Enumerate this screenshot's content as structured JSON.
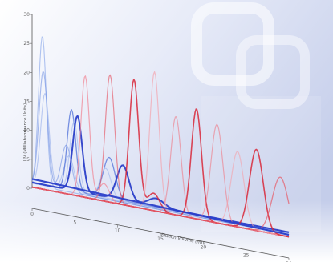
{
  "chart_data": {
    "type": "line",
    "title": "",
    "xlabel": "Elution Volume (mL)",
    "ylabel": "UV (Milliabsorbance Units)",
    "xlim": [
      0,
      30
    ],
    "ylim": [
      0,
      30
    ],
    "x_ticks": [
      "0",
      "5",
      "10",
      "15",
      "20",
      "25",
      "30"
    ],
    "y_ticks": [
      "0",
      "5",
      "10",
      "15",
      "20",
      "25",
      "30"
    ],
    "grid": false,
    "legend": "none",
    "palette": {
      "red": "#d8283a",
      "blue": "#2b3fc9",
      "background_tint": "#c9d2ee"
    },
    "series": [
      {
        "color": "#7f9fe8",
        "opacity": 0.6,
        "width": 1.1,
        "peaks": [
          [
            1.2,
            26,
            0.45
          ]
        ],
        "baseline": 0.6
      },
      {
        "color": "#6f90e2",
        "opacity": 0.6,
        "width": 1.1,
        "peaks": [
          [
            1.3,
            20,
            0.5
          ],
          [
            4.0,
            8,
            0.6
          ]
        ],
        "baseline": 0.6
      },
      {
        "color": "#8aa6ea",
        "opacity": 0.55,
        "width": 1.1,
        "peaks": [
          [
            1.5,
            16,
            0.5
          ],
          [
            4.3,
            6,
            0.6
          ]
        ],
        "baseline": 0.8
      },
      {
        "color": "#4d6fd8",
        "opacity": 0.75,
        "width": 1.3,
        "peaks": [
          [
            4.6,
            14,
            0.5
          ],
          [
            9.0,
            7,
            0.7
          ]
        ],
        "baseline": 0.9
      },
      {
        "color": "#9db4ee",
        "opacity": 0.6,
        "width": 1.1,
        "peaks": [
          [
            4.9,
            12,
            0.5
          ],
          [
            8.6,
            5,
            0.6
          ]
        ],
        "baseline": 0.9
      },
      {
        "color": "#2b3fc9",
        "opacity": 0.95,
        "width": 2.0,
        "peaks": [
          [
            5.3,
            13,
            0.55
          ],
          [
            10.6,
            6,
            0.7
          ],
          [
            14.5,
            1.4,
            0.9
          ]
        ],
        "baseline": 1.0
      },
      {
        "color": "#f08a98",
        "opacity": 0.75,
        "width": 1.2,
        "peaks": [
          [
            6.2,
            21,
            0.5
          ],
          [
            8.4,
            3,
            0.6
          ]
        ],
        "baseline": 0.2
      },
      {
        "color": "#e5616f",
        "opacity": 0.7,
        "width": 1.2,
        "peaks": [
          [
            9.1,
            22,
            0.55
          ]
        ],
        "baseline": 0.2
      },
      {
        "color": "#d8283a",
        "opacity": 0.85,
        "width": 1.6,
        "peaks": [
          [
            11.9,
            22,
            0.55
          ],
          [
            14.2,
            3,
            0.7
          ]
        ],
        "baseline": 0.2
      },
      {
        "color": "#f3a4ae",
        "opacity": 0.7,
        "width": 1.2,
        "peaks": [
          [
            14.3,
            24,
            0.55
          ]
        ],
        "baseline": 0.2
      },
      {
        "color": "#ec8794",
        "opacity": 0.7,
        "width": 1.2,
        "peaks": [
          [
            16.8,
            17,
            0.6
          ]
        ],
        "baseline": 0.2
      },
      {
        "color": "#d8283a",
        "opacity": 0.85,
        "width": 1.6,
        "peaks": [
          [
            19.2,
            19,
            0.6
          ]
        ],
        "baseline": 0.2
      },
      {
        "color": "#ec8794",
        "opacity": 0.7,
        "width": 1.2,
        "peaks": [
          [
            21.6,
            17,
            0.7
          ]
        ],
        "baseline": 0.2
      },
      {
        "color": "#f3a4ae",
        "opacity": 0.65,
        "width": 1.2,
        "peaks": [
          [
            24.0,
            13,
            0.75
          ]
        ],
        "baseline": 0.2
      },
      {
        "color": "#d8283a",
        "opacity": 0.85,
        "width": 1.6,
        "peaks": [
          [
            26.2,
            14,
            0.8
          ]
        ],
        "baseline": 0.2
      },
      {
        "color": "#e5616f",
        "opacity": 0.75,
        "width": 1.3,
        "peaks": [
          [
            29.0,
            10,
            0.95
          ]
        ],
        "baseline": 0.2
      },
      {
        "color": "#2b3fc9",
        "opacity": 0.95,
        "width": 2.2,
        "peaks": [],
        "baseline": 1.6,
        "slope": -0.035
      }
    ]
  }
}
